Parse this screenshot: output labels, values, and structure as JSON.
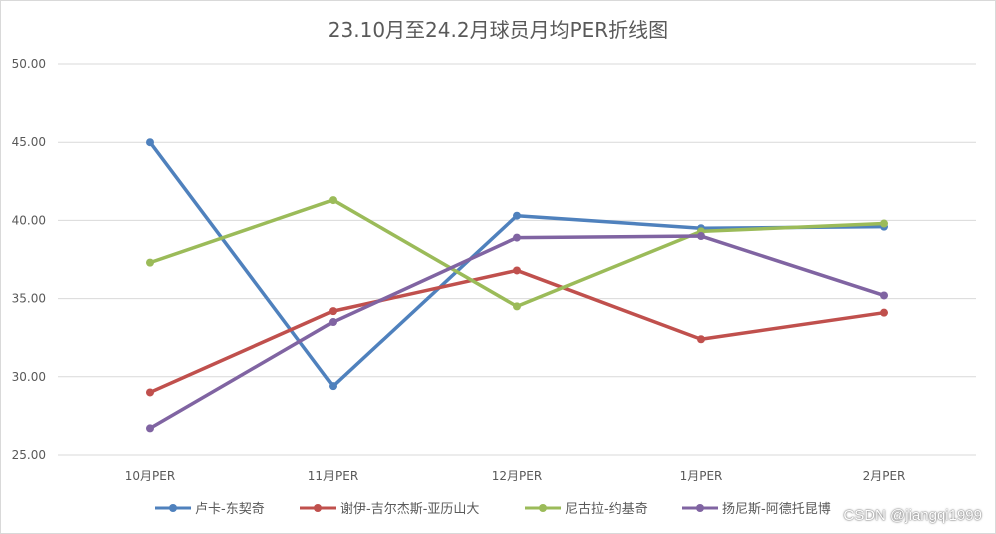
{
  "chart_data": {
    "type": "line",
    "title": "23.10月至24.2月球员月均PER折线图",
    "categories": [
      "10月PER",
      "11月PER",
      "12月PER",
      "1月PER",
      "2月PER"
    ],
    "ylim": [
      25,
      50
    ],
    "yticks": [
      "25.00",
      "30.00",
      "35.00",
      "40.00",
      "45.00",
      "50.00"
    ],
    "grid": true,
    "legend_position": "bottom",
    "series": [
      {
        "name": "卢卡-东契奇",
        "color": "#4f81bd",
        "values": [
          45.0,
          29.4,
          40.3,
          39.5,
          39.6
        ]
      },
      {
        "name": "谢伊-吉尔杰斯-亚历山大",
        "color": "#c0504d",
        "values": [
          29.0,
          34.2,
          36.8,
          32.4,
          34.1
        ]
      },
      {
        "name": "尼古拉-约基奇",
        "color": "#9bbb59",
        "values": [
          37.3,
          41.3,
          34.5,
          39.3,
          39.8
        ]
      },
      {
        "name": "扬尼斯-阿德托昆博",
        "color": "#8064a2",
        "values": [
          26.7,
          33.5,
          38.9,
          39.0,
          35.2
        ]
      }
    ]
  },
  "watermark": "CSDN @jiangqi1999"
}
